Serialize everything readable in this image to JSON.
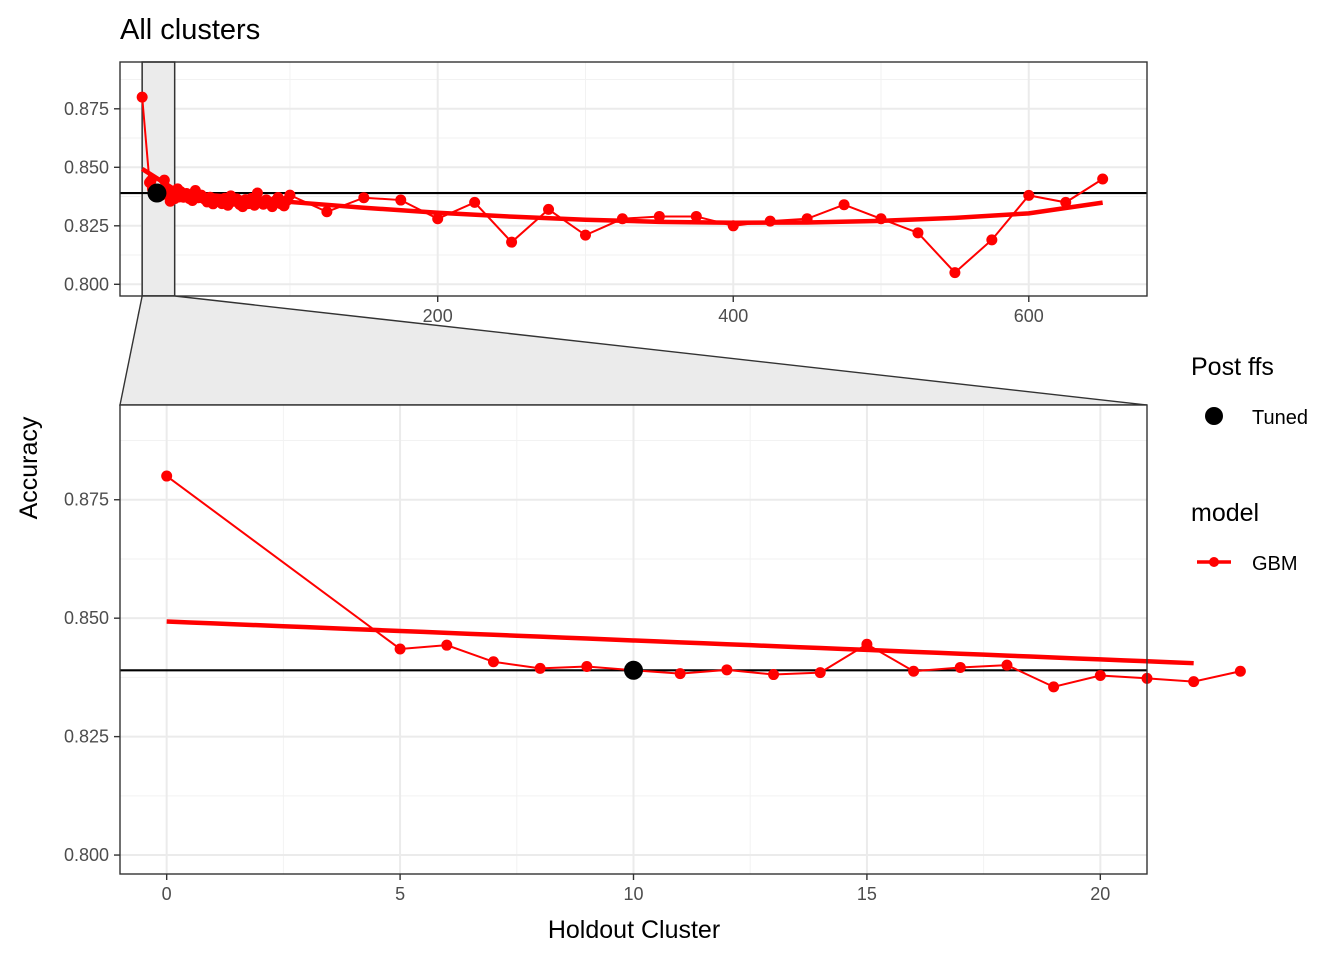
{
  "chart_data": {
    "type": "line",
    "title": "All clusters",
    "xlabel": "Holdout Cluster",
    "ylabel": "Accuracy",
    "reference_line_y": 0.839,
    "colors": {
      "series": "#ff0000",
      "tuned": "#000000",
      "reference": "#000000",
      "zoom_fill": "#ebebeb"
    },
    "top_panel": {
      "xlim": [
        -15,
        680
      ],
      "ylim": [
        0.795,
        0.895
      ],
      "x_ticks": [
        0,
        200,
        400,
        600
      ],
      "y_ticks": [
        0.8,
        0.825,
        0.85,
        0.875
      ],
      "y_tick_labels": [
        "0.800",
        "0.825",
        "0.850",
        "0.875"
      ],
      "zoom_region_x": [
        0,
        22
      ]
    },
    "zoom_panel": {
      "xlim": [
        -1,
        21
      ],
      "ylim": [
        0.796,
        0.895
      ],
      "x_ticks": [
        0,
        5,
        10,
        15,
        20
      ],
      "y_ticks": [
        0.8,
        0.825,
        0.85,
        0.875
      ],
      "y_tick_labels": [
        "0.800",
        "0.825",
        "0.850",
        "0.875"
      ]
    },
    "series": [
      {
        "name": "GBM",
        "x": [
          0,
          5,
          6,
          7,
          8,
          9,
          10,
          11,
          12,
          13,
          14,
          15,
          16,
          17,
          18,
          19,
          20,
          21,
          22,
          23,
          24,
          25,
          26,
          27,
          28,
          30,
          32,
          34,
          36,
          38,
          40,
          42,
          44,
          46,
          48,
          50,
          52,
          54,
          56,
          58,
          60,
          62,
          64,
          66,
          68,
          70,
          72,
          74,
          76,
          78,
          80,
          82,
          84,
          86,
          88,
          90,
          92,
          94,
          96,
          98,
          100,
          125,
          150,
          175,
          200,
          225,
          250,
          275,
          300,
          325,
          350,
          375,
          400,
          425,
          450,
          475,
          500,
          525,
          550,
          575,
          600,
          625,
          650
        ],
        "values": [
          0.88,
          0.8435,
          0.8443,
          0.8408,
          0.8394,
          0.8398,
          0.839,
          0.8383,
          0.8391,
          0.8381,
          0.8385,
          0.8445,
          0.8388,
          0.8396,
          0.8401,
          0.8355,
          0.8379,
          0.8373,
          0.8366,
          0.8388,
          0.8408,
          0.8373,
          0.8396,
          0.8381,
          0.8372,
          0.8388,
          0.8366,
          0.8358,
          0.8401,
          0.837,
          0.8381,
          0.8365,
          0.8352,
          0.8372,
          0.8344,
          0.8358,
          0.8361,
          0.8345,
          0.8368,
          0.8338,
          0.8378,
          0.8355,
          0.8365,
          0.8341,
          0.8332,
          0.8362,
          0.8345,
          0.8367,
          0.8338,
          0.839,
          0.8352,
          0.8342,
          0.8361,
          0.8349,
          0.8332,
          0.8356,
          0.8371,
          0.8344,
          0.8335,
          0.8358,
          0.8381,
          0.831,
          0.837,
          0.836,
          0.828,
          0.835,
          0.818,
          0.832,
          0.821,
          0.828,
          0.829,
          0.829,
          0.825,
          0.827,
          0.828,
          0.834,
          0.828,
          0.822,
          0.805,
          0.819,
          0.838,
          0.835,
          0.845
        ]
      },
      {
        "name": "GBM trend",
        "x": [
          0,
          25,
          50,
          75,
          100,
          150,
          200,
          250,
          300,
          350,
          400,
          450,
          500,
          550,
          600,
          650
        ],
        "values": [
          0.8493,
          0.8393,
          0.8379,
          0.8366,
          0.8352,
          0.8327,
          0.8306,
          0.8289,
          0.8276,
          0.8267,
          0.8263,
          0.8264,
          0.8271,
          0.8284,
          0.8303,
          0.8349
        ]
      }
    ],
    "tuned_point": {
      "x": 10,
      "y": 0.839
    },
    "legend": {
      "placement": "right",
      "groups": [
        {
          "title": "Post ffs",
          "label": "Tuned",
          "icon": "filled-circle-icon"
        },
        {
          "title": "model",
          "label": "GBM",
          "icon": "line-point-icon"
        }
      ]
    }
  }
}
